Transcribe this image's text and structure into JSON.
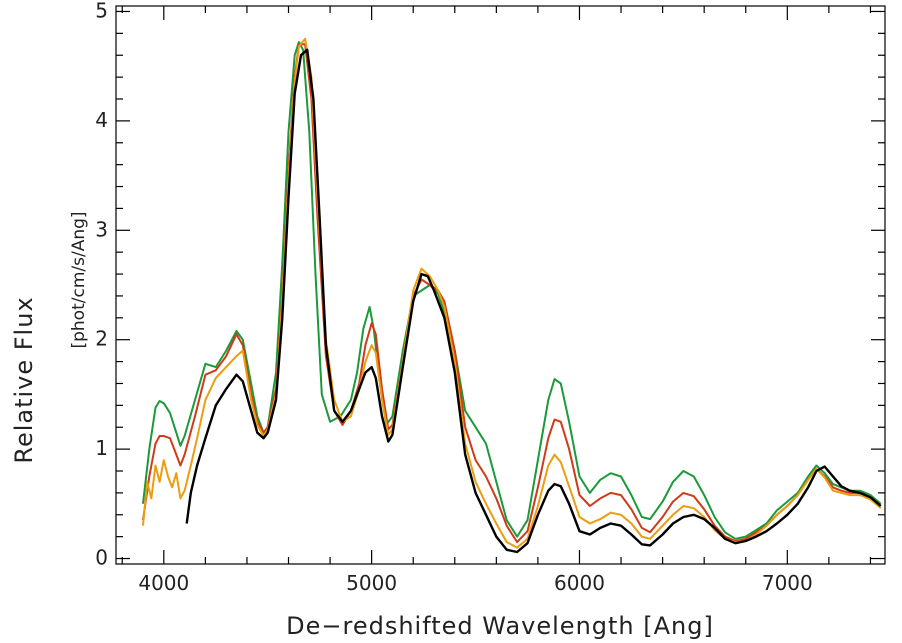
{
  "chart_data": {
    "type": "line",
    "title": "",
    "xlabel": "De−redshifted Wavelength [Ang]",
    "ylabel": "Relative Flux",
    "yunit": "[phot/cm/s/Ang]",
    "xlim": [
      3770,
      7470
    ],
    "ylim": [
      -0.05,
      5.05
    ],
    "xticks": [
      4000,
      5000,
      6000,
      7000
    ],
    "xtick_labels": [
      "4000",
      "5000",
      "6000",
      "7000"
    ],
    "yticks": [
      0,
      1,
      2,
      3,
      4,
      5
    ],
    "ytick_labels": [
      "0",
      "1",
      "2",
      "3",
      "4",
      "5"
    ],
    "grid": false,
    "legend": "none",
    "series": [
      {
        "color": "#1a9a3a",
        "x": [
          3900,
          3930,
          3960,
          3980,
          4000,
          4030,
          4060,
          4080,
          4100,
          4150,
          4200,
          4250,
          4300,
          4350,
          4380,
          4420,
          4450,
          4480,
          4500,
          4540,
          4570,
          4600,
          4630,
          4650,
          4670,
          4700,
          4730,
          4760,
          4800,
          4850,
          4900,
          4930,
          4960,
          4990,
          5010,
          5040,
          5070,
          5100,
          5150,
          5200,
          5240,
          5280,
          5320,
          5350,
          5400,
          5450,
          5500,
          5550,
          5600,
          5650,
          5700,
          5750,
          5800,
          5850,
          5880,
          5910,
          5950,
          6000,
          6050,
          6100,
          6150,
          6200,
          6250,
          6300,
          6340,
          6400,
          6450,
          6500,
          6550,
          6600,
          6650,
          6700,
          6750,
          6800,
          6850,
          6900,
          6950,
          7000,
          7050,
          7100,
          7140,
          7180,
          7220,
          7260,
          7300,
          7350,
          7400,
          7450
        ],
        "y": [
          0.5,
          1.0,
          1.38,
          1.44,
          1.42,
          1.33,
          1.15,
          1.03,
          1.12,
          1.45,
          1.78,
          1.75,
          1.9,
          2.08,
          2.0,
          1.6,
          1.3,
          1.15,
          1.2,
          1.7,
          2.7,
          3.9,
          4.6,
          4.72,
          4.65,
          3.9,
          2.6,
          1.5,
          1.25,
          1.3,
          1.45,
          1.7,
          2.1,
          2.3,
          2.1,
          1.6,
          1.22,
          1.3,
          1.9,
          2.4,
          2.45,
          2.5,
          2.42,
          2.25,
          1.9,
          1.35,
          1.2,
          1.05,
          0.7,
          0.35,
          0.2,
          0.35,
          0.9,
          1.45,
          1.64,
          1.6,
          1.25,
          0.75,
          0.6,
          0.72,
          0.78,
          0.75,
          0.58,
          0.38,
          0.36,
          0.52,
          0.7,
          0.8,
          0.75,
          0.58,
          0.38,
          0.24,
          0.18,
          0.2,
          0.26,
          0.32,
          0.44,
          0.52,
          0.6,
          0.75,
          0.85,
          0.78,
          0.68,
          0.65,
          0.62,
          0.62,
          0.58,
          0.5
        ]
      },
      {
        "color": "#d03a18",
        "x": [
          3900,
          3930,
          3960,
          3980,
          4000,
          4030,
          4060,
          4080,
          4100,
          4150,
          4200,
          4250,
          4300,
          4350,
          4380,
          4420,
          4450,
          4480,
          4500,
          4540,
          4570,
          4600,
          4630,
          4650,
          4680,
          4710,
          4740,
          4780,
          4820,
          4860,
          4900,
          4940,
          4970,
          5000,
          5020,
          5050,
          5080,
          5100,
          5150,
          5200,
          5240,
          5280,
          5320,
          5350,
          5400,
          5450,
          5500,
          5550,
          5600,
          5650,
          5700,
          5750,
          5800,
          5850,
          5880,
          5910,
          5950,
          6000,
          6050,
          6100,
          6150,
          6200,
          6250,
          6300,
          6340,
          6400,
          6450,
          6500,
          6550,
          6600,
          6650,
          6700,
          6750,
          6800,
          6850,
          6900,
          6950,
          7000,
          7050,
          7100,
          7140,
          7180,
          7220,
          7260,
          7300,
          7350,
          7400,
          7450
        ],
        "y": [
          0.35,
          0.75,
          1.05,
          1.12,
          1.12,
          1.1,
          0.95,
          0.85,
          0.95,
          1.3,
          1.68,
          1.72,
          1.85,
          2.05,
          1.95,
          1.5,
          1.25,
          1.15,
          1.2,
          1.55,
          2.4,
          3.55,
          4.4,
          4.7,
          4.7,
          4.2,
          3.1,
          1.85,
          1.35,
          1.22,
          1.35,
          1.6,
          1.95,
          2.15,
          2.05,
          1.55,
          1.18,
          1.22,
          1.8,
          2.4,
          2.55,
          2.5,
          2.45,
          2.35,
          1.9,
          1.2,
          0.9,
          0.75,
          0.55,
          0.3,
          0.15,
          0.25,
          0.65,
          1.1,
          1.27,
          1.25,
          1.0,
          0.58,
          0.48,
          0.55,
          0.6,
          0.58,
          0.45,
          0.28,
          0.24,
          0.38,
          0.52,
          0.6,
          0.57,
          0.45,
          0.3,
          0.2,
          0.16,
          0.18,
          0.24,
          0.3,
          0.4,
          0.48,
          0.58,
          0.72,
          0.82,
          0.75,
          0.65,
          0.62,
          0.6,
          0.6,
          0.56,
          0.48
        ]
      },
      {
        "color": "#ec9d10",
        "x": [
          3900,
          3920,
          3940,
          3960,
          3980,
          4000,
          4020,
          4040,
          4060,
          4080,
          4100,
          4130,
          4160,
          4200,
          4250,
          4300,
          4350,
          4380,
          4420,
          4450,
          4480,
          4500,
          4540,
          4570,
          4600,
          4630,
          4650,
          4680,
          4710,
          4740,
          4780,
          4820,
          4860,
          4900,
          4940,
          4970,
          5000,
          5020,
          5050,
          5080,
          5100,
          5150,
          5200,
          5240,
          5280,
          5320,
          5350,
          5400,
          5450,
          5500,
          5550,
          5600,
          5650,
          5700,
          5750,
          5800,
          5850,
          5880,
          5910,
          5950,
          6000,
          6050,
          6100,
          6150,
          6200,
          6250,
          6300,
          6340,
          6400,
          6450,
          6500,
          6550,
          6600,
          6650,
          6700,
          6750,
          6800,
          6850,
          6900,
          6950,
          7000,
          7050,
          7100,
          7140,
          7180,
          7220,
          7260,
          7300,
          7350,
          7400,
          7450
        ],
        "y": [
          0.3,
          0.7,
          0.55,
          0.85,
          0.7,
          0.9,
          0.75,
          0.65,
          0.78,
          0.55,
          0.62,
          0.85,
          1.1,
          1.45,
          1.65,
          1.75,
          1.85,
          1.9,
          1.45,
          1.22,
          1.12,
          1.18,
          1.5,
          2.35,
          3.45,
          4.35,
          4.68,
          4.75,
          4.4,
          3.3,
          2.0,
          1.45,
          1.25,
          1.3,
          1.55,
          1.8,
          1.95,
          1.88,
          1.45,
          1.13,
          1.18,
          1.8,
          2.45,
          2.65,
          2.58,
          2.45,
          2.3,
          1.8,
          1.05,
          0.7,
          0.5,
          0.32,
          0.15,
          0.1,
          0.18,
          0.48,
          0.85,
          0.95,
          0.88,
          0.66,
          0.38,
          0.32,
          0.36,
          0.42,
          0.4,
          0.32,
          0.2,
          0.18,
          0.3,
          0.4,
          0.48,
          0.46,
          0.38,
          0.26,
          0.18,
          0.15,
          0.16,
          0.22,
          0.3,
          0.4,
          0.48,
          0.58,
          0.72,
          0.82,
          0.74,
          0.62,
          0.6,
          0.58,
          0.58,
          0.54,
          0.46
        ]
      },
      {
        "color": "#000000",
        "x": [
          4110,
          4130,
          4160,
          4200,
          4250,
          4300,
          4350,
          4380,
          4420,
          4450,
          4480,
          4500,
          4540,
          4570,
          4600,
          4630,
          4660,
          4690,
          4720,
          4750,
          4780,
          4820,
          4860,
          4900,
          4940,
          4970,
          5000,
          5020,
          5050,
          5080,
          5100,
          5150,
          5200,
          5240,
          5270,
          5300,
          5350,
          5400,
          5450,
          5500,
          5550,
          5600,
          5650,
          5700,
          5750,
          5800,
          5850,
          5880,
          5910,
          5950,
          6000,
          6050,
          6100,
          6150,
          6200,
          6250,
          6300,
          6340,
          6400,
          6450,
          6500,
          6550,
          6600,
          6650,
          6700,
          6750,
          6800,
          6850,
          6900,
          6950,
          7000,
          7050,
          7100,
          7140,
          7180,
          7220,
          7260,
          7300,
          7350,
          7400,
          7450
        ],
        "y": [
          0.32,
          0.6,
          0.85,
          1.1,
          1.4,
          1.55,
          1.68,
          1.62,
          1.35,
          1.15,
          1.1,
          1.15,
          1.45,
          2.2,
          3.3,
          4.25,
          4.6,
          4.65,
          4.2,
          3.1,
          1.95,
          1.35,
          1.25,
          1.35,
          1.55,
          1.7,
          1.75,
          1.65,
          1.3,
          1.07,
          1.13,
          1.75,
          2.35,
          2.6,
          2.58,
          2.45,
          2.2,
          1.7,
          0.95,
          0.6,
          0.4,
          0.2,
          0.08,
          0.06,
          0.14,
          0.4,
          0.62,
          0.68,
          0.66,
          0.5,
          0.25,
          0.22,
          0.28,
          0.32,
          0.3,
          0.22,
          0.13,
          0.12,
          0.22,
          0.32,
          0.38,
          0.4,
          0.36,
          0.28,
          0.18,
          0.14,
          0.16,
          0.2,
          0.25,
          0.32,
          0.4,
          0.5,
          0.65,
          0.8,
          0.84,
          0.75,
          0.66,
          0.62,
          0.6,
          0.56,
          0.48
        ]
      }
    ]
  }
}
